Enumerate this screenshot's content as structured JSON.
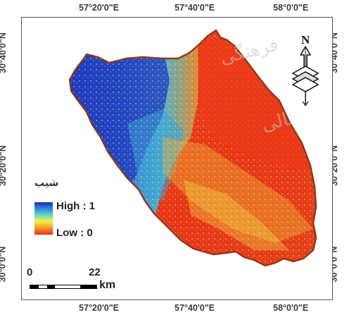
{
  "top_labels": [
    "57°20'0\"E",
    "57°40'0\"E",
    "58°0'0\"E"
  ],
  "bottom_labels": [
    "57°20'0\"E",
    "57°40'0\"E",
    "58°0'0\"E"
  ],
  "left_labels": [
    "30°40'0\"N",
    "30°20'0\"N",
    "30°0'0\"N"
  ],
  "right_labels": [
    "30°40'0\"N",
    "30°20'0\"N",
    "30°0'0\"N"
  ],
  "legend": {
    "title": "شیب",
    "high": "High : 1",
    "low": "Low : 0",
    "colors": [
      "#1c2ab8",
      "#2f7fd9",
      "#55d7c8",
      "#f3f24a",
      "#f3a02a",
      "#ec2c14"
    ]
  },
  "scale": {
    "start": "0",
    "end": "22",
    "unit": "km"
  },
  "north": {
    "letter": "N",
    "icon": "north-arrow-icon"
  },
  "boundary_color": "#8b3a1a"
}
